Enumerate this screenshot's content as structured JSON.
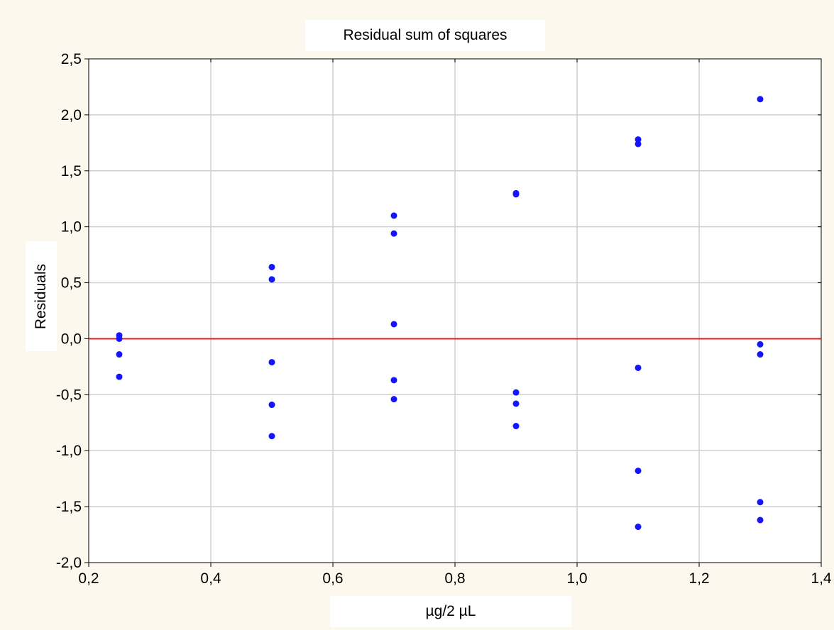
{
  "chart_data": {
    "type": "scatter",
    "title": "Residual sum of squares",
    "xlabel": "µg/2 µL",
    "ylabel": "Residuals",
    "xlim": [
      0.2,
      1.4
    ],
    "ylim": [
      -2.0,
      2.5
    ],
    "xticks": [
      0.2,
      0.4,
      0.6,
      0.8,
      1.0,
      1.2,
      1.4
    ],
    "yticks": [
      -2.0,
      -1.5,
      -1.0,
      -0.5,
      0.0,
      0.5,
      1.0,
      1.5,
      2.0,
      2.5
    ],
    "xtick_labels": [
      "0,2",
      "0,4",
      "0,6",
      "0,8",
      "1,0",
      "1,2",
      "1,4"
    ],
    "ytick_labels": [
      "-2,0",
      "-1,5",
      "-1,0",
      "-0,5",
      "0,0",
      "0,5",
      "1,0",
      "1,5",
      "2,0",
      "2,5"
    ],
    "grid": true,
    "reference_line": {
      "y": 0.0,
      "color": "#e41a1c"
    },
    "series": [
      {
        "color": "#1414ff",
        "points": [
          [
            0.25,
            0.03
          ],
          [
            0.25,
            0.0
          ],
          [
            0.25,
            -0.14
          ],
          [
            0.25,
            -0.34
          ],
          [
            0.5,
            0.64
          ],
          [
            0.5,
            0.53
          ],
          [
            0.5,
            -0.21
          ],
          [
            0.5,
            -0.59
          ],
          [
            0.5,
            -0.87
          ],
          [
            0.7,
            1.1
          ],
          [
            0.7,
            0.94
          ],
          [
            0.7,
            0.13
          ],
          [
            0.7,
            -0.37
          ],
          [
            0.7,
            -0.54
          ],
          [
            0.9,
            1.29
          ],
          [
            0.9,
            1.3
          ],
          [
            0.9,
            -0.48
          ],
          [
            0.9,
            -0.58
          ],
          [
            0.9,
            -0.78
          ],
          [
            1.1,
            1.78
          ],
          [
            1.1,
            1.74
          ],
          [
            1.1,
            -0.26
          ],
          [
            1.1,
            -1.18
          ],
          [
            1.1,
            -1.68
          ],
          [
            1.3,
            2.14
          ],
          [
            1.3,
            -0.05
          ],
          [
            1.3,
            -0.14
          ],
          [
            1.3,
            -1.46
          ],
          [
            1.3,
            -1.62
          ]
        ]
      }
    ]
  },
  "colors": {
    "page_background": "#fdf8ee",
    "plot_background": "#ffffff",
    "grid": "#cfcfcf",
    "axis": "#000000",
    "points": "#1414ff",
    "zero_line": "#e41a1c"
  }
}
